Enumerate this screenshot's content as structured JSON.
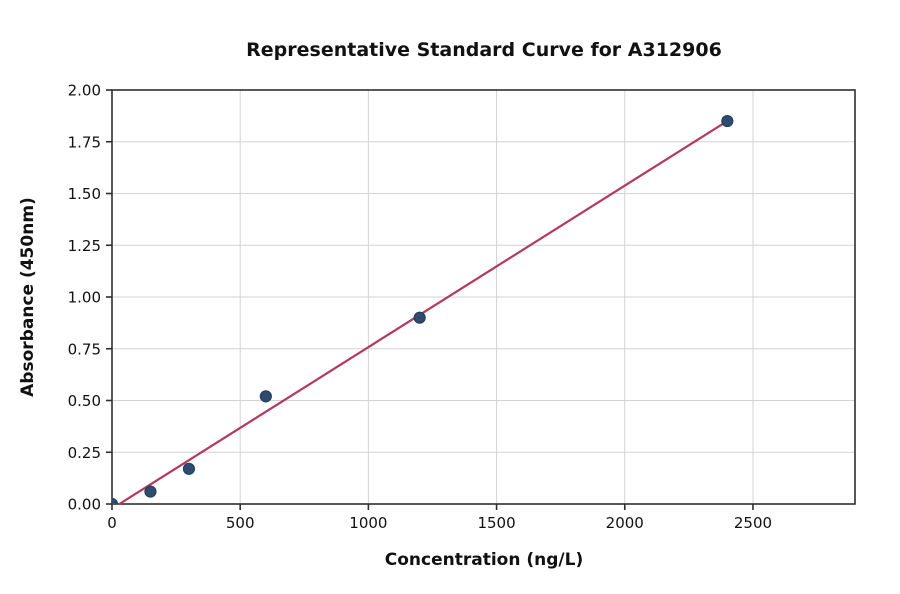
{
  "chart_data": {
    "type": "scatter",
    "title": "Representative Standard Curve for A312906",
    "xlabel": "Concentration (ng/L)",
    "ylabel": "Absorbance (450nm)",
    "xlim": [
      0,
      2898
    ],
    "ylim": [
      0,
      2.0
    ],
    "grid": true,
    "legend": null,
    "xticks": [
      {
        "v": 0,
        "label": "0"
      },
      {
        "v": 500,
        "label": "500"
      },
      {
        "v": 1000,
        "label": "1000"
      },
      {
        "v": 1500,
        "label": "1500"
      },
      {
        "v": 2000,
        "label": "2000"
      },
      {
        "v": 2500,
        "label": "2500"
      }
    ],
    "yticks": [
      {
        "v": 0.0,
        "label": "0.00"
      },
      {
        "v": 0.25,
        "label": "0.25"
      },
      {
        "v": 0.5,
        "label": "0.50"
      },
      {
        "v": 0.75,
        "label": "0.75"
      },
      {
        "v": 1.0,
        "label": "1.00"
      },
      {
        "v": 1.25,
        "label": "1.25"
      },
      {
        "v": 1.5,
        "label": "1.50"
      },
      {
        "v": 1.75,
        "label": "1.75"
      },
      {
        "v": 2.0,
        "label": "2.00"
      }
    ],
    "points": [
      {
        "x": 0,
        "y": 0.0
      },
      {
        "x": 150,
        "y": 0.06
      },
      {
        "x": 300,
        "y": 0.17
      },
      {
        "x": 600,
        "y": 0.52
      },
      {
        "x": 1200,
        "y": 0.9
      },
      {
        "x": 2400,
        "y": 1.85
      }
    ],
    "fit_line": {
      "x1": 29,
      "y1": 0.0,
      "x2": 2400,
      "y2": 1.85
    },
    "colors": {
      "point_fill": "#2f4b6e",
      "point_edge": "#22405f",
      "line": "#b23a60",
      "grid": "#d3d3d3",
      "spine": "#2f2f2f",
      "text": "#111111"
    }
  }
}
